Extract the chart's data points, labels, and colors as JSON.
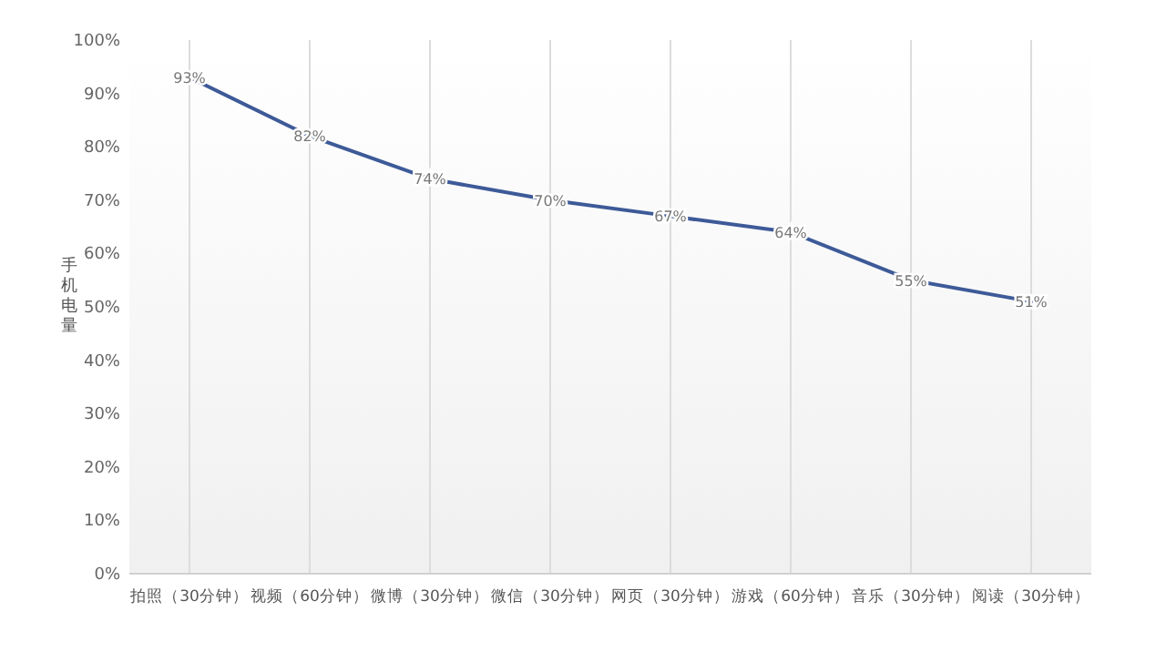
{
  "chart_data": {
    "type": "line",
    "ylabel": "手机电量",
    "categories": [
      "拍照（30分钟）",
      "视频（60分钟）",
      "微博（30分钟）",
      "微信（30分钟）",
      "网页（30分钟）",
      "游戏（60分钟）",
      "音乐（30分钟）",
      "阅读（30分钟）"
    ],
    "series": [
      {
        "color": "#3d5a98",
        "values": [
          93,
          82,
          74,
          70,
          67,
          64,
          55,
          51
        ],
        "value_labels": [
          "93%",
          "82%",
          "74%",
          "70%",
          "67%",
          "64%",
          "55%",
          "51%"
        ]
      }
    ],
    "ylim": [
      0,
      100
    ],
    "yticks": [
      {
        "value": 0,
        "label": "0%"
      },
      {
        "value": 10,
        "label": "10%"
      },
      {
        "value": 20,
        "label": "20%"
      },
      {
        "value": 30,
        "label": "30%"
      },
      {
        "value": 40,
        "label": "40%"
      },
      {
        "value": 50,
        "label": "50%"
      },
      {
        "value": 60,
        "label": "60%"
      },
      {
        "value": 70,
        "label": "70%"
      },
      {
        "value": 80,
        "label": "80%"
      },
      {
        "value": 90,
        "label": "90%"
      },
      {
        "value": 100,
        "label": "100%"
      }
    ],
    "grid": "x",
    "marker": "none",
    "line_style": "solid"
  }
}
